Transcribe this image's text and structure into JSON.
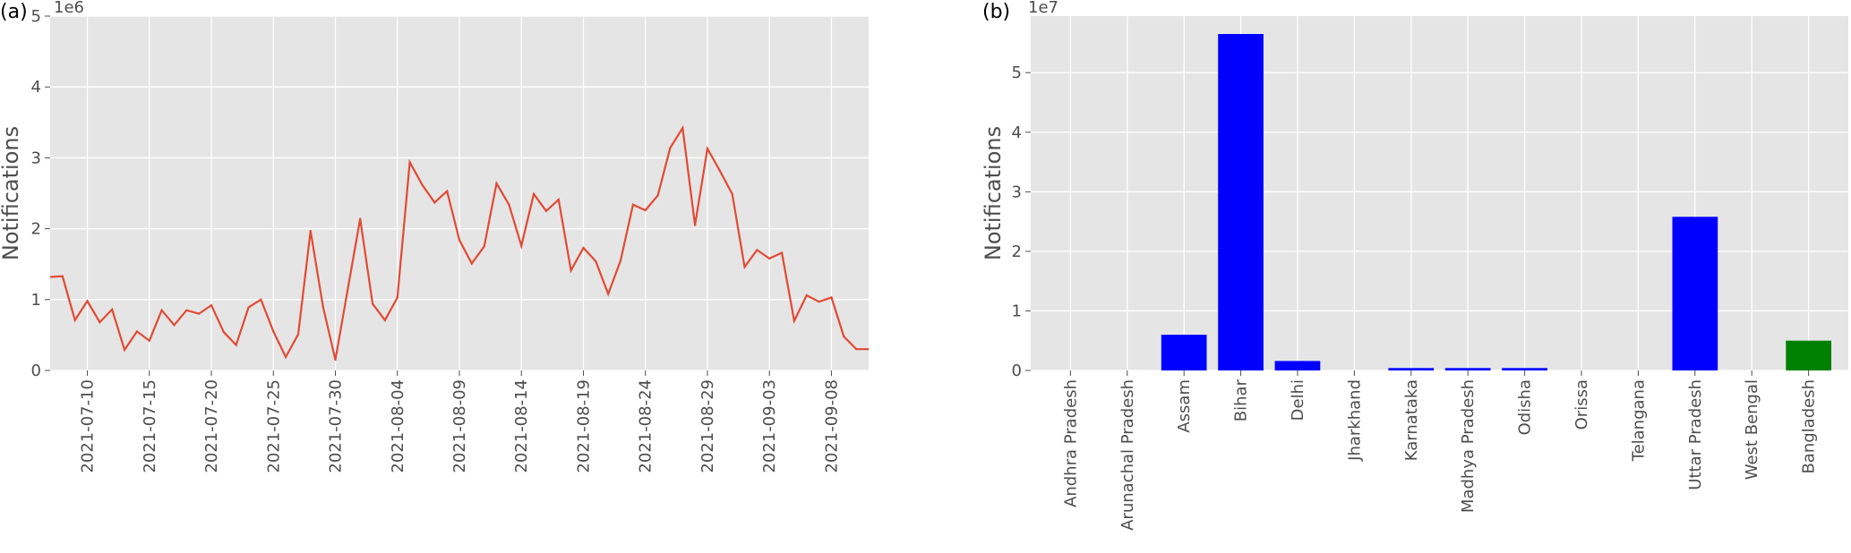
{
  "figure": {
    "panels": [
      "(a)",
      "(b)"
    ]
  },
  "chart_data": [
    {
      "type": "line",
      "ylabel": "Notifications",
      "xlabel": "",
      "y_offset_label": "1e6",
      "ylim": [
        0,
        5
      ],
      "y_ticks": [
        0,
        1,
        2,
        3,
        4,
        5
      ],
      "xlim": [
        "2021-07-07",
        "2021-09-11"
      ],
      "x_tick_labels": [
        "2021-07-10",
        "2021-07-15",
        "2021-07-20",
        "2021-07-25",
        "2021-07-30",
        "2021-08-04",
        "2021-08-09",
        "2021-08-14",
        "2021-08-19",
        "2021-08-24",
        "2021-08-29",
        "2021-09-03",
        "2021-09-08"
      ],
      "grid": true,
      "line_color": "#e24a33",
      "series": [
        {
          "x": [
            "2021-07-07",
            "2021-07-08",
            "2021-07-09",
            "2021-07-10",
            "2021-07-11",
            "2021-07-12",
            "2021-07-13",
            "2021-07-14",
            "2021-07-15",
            "2021-07-16",
            "2021-07-17",
            "2021-07-18",
            "2021-07-19",
            "2021-07-20",
            "2021-07-21",
            "2021-07-22",
            "2021-07-23",
            "2021-07-24",
            "2021-07-25",
            "2021-07-26",
            "2021-07-27",
            "2021-07-28",
            "2021-07-29",
            "2021-07-30",
            "2021-07-31",
            "2021-08-01",
            "2021-08-02",
            "2021-08-03",
            "2021-08-04",
            "2021-08-05",
            "2021-08-06",
            "2021-08-07",
            "2021-08-08",
            "2021-08-09",
            "2021-08-10",
            "2021-08-11",
            "2021-08-12",
            "2021-08-13",
            "2021-08-14",
            "2021-08-15",
            "2021-08-16",
            "2021-08-17",
            "2021-08-18",
            "2021-08-19",
            "2021-08-20",
            "2021-08-21",
            "2021-08-22",
            "2021-08-23",
            "2021-08-24",
            "2021-08-25",
            "2021-08-26",
            "2021-08-27",
            "2021-08-28",
            "2021-08-29",
            "2021-08-30",
            "2021-08-31",
            "2021-09-01",
            "2021-09-02",
            "2021-09-03",
            "2021-09-04",
            "2021-09-05",
            "2021-09-06",
            "2021-09-07",
            "2021-09-08",
            "2021-09-09",
            "2021-09-10",
            "2021-09-11"
          ],
          "values": [
            1.32,
            1.33,
            0.71,
            0.98,
            0.68,
            0.86,
            0.29,
            0.55,
            0.42,
            0.85,
            0.64,
            0.85,
            0.8,
            0.92,
            0.54,
            0.36,
            0.89,
            1.0,
            0.55,
            0.19,
            0.51,
            1.97,
            0.9,
            0.15,
            1.15,
            2.14,
            0.94,
            0.71,
            1.03,
            2.94,
            2.62,
            2.37,
            2.53,
            1.84,
            1.51,
            1.75,
            2.64,
            2.34,
            1.76,
            2.49,
            2.25,
            2.41,
            1.41,
            1.73,
            1.54,
            1.08,
            1.55,
            2.34,
            2.26,
            2.47,
            3.14,
            3.42,
            2.05,
            3.13,
            2.82,
            2.49,
            1.46,
            1.7,
            1.58,
            1.66,
            0.7,
            1.06,
            0.97,
            1.03,
            0.48,
            0.3,
            0.3
          ]
        }
      ]
    },
    {
      "type": "bar",
      "ylabel": "Notifications",
      "xlabel": "",
      "y_offset_label": "1e7",
      "ylim": [
        0,
        5.95
      ],
      "y_ticks": [
        0,
        1,
        2,
        3,
        4,
        5
      ],
      "grid": true,
      "categories": [
        "Andhra Pradesh",
        "Arunachal Pradesh",
        "Assam",
        "Bihar",
        "Delhi",
        "Jharkhand",
        "Karnataka",
        "Madhya Pradesh",
        "Odisha",
        "Orissa",
        "Telangana",
        "Uttar Pradesh",
        "West Bengal",
        "Bangladesh"
      ],
      "values": [
        0,
        0,
        0.6,
        5.65,
        0.16,
        0,
        0.04,
        0.04,
        0.04,
        0,
        0,
        2.58,
        0,
        0.5
      ],
      "colors": [
        "#0000ff",
        "#0000ff",
        "#0000ff",
        "#0000ff",
        "#0000ff",
        "#0000ff",
        "#0000ff",
        "#0000ff",
        "#0000ff",
        "#0000ff",
        "#0000ff",
        "#0000ff",
        "#0000ff",
        "#008000"
      ]
    }
  ],
  "colors": {
    "plot_background": "#e5e5e5",
    "grid": "#ffffff",
    "tick_text": "#4d4d4d"
  }
}
